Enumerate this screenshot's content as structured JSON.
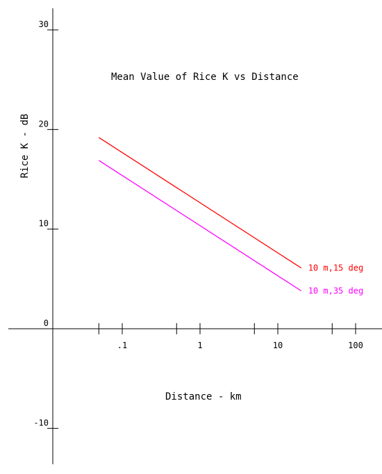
{
  "chart_data": {
    "type": "line",
    "title": "Mean Value of Rice K vs Distance",
    "xlabel": "Distance - km",
    "ylabel": "Rice K - dB",
    "x_scale": "log",
    "xlim": [
      0.025,
      200
    ],
    "ylim": [
      -12,
      31
    ],
    "grid": false,
    "y_ticks": [
      -10,
      0,
      10,
      20,
      30
    ],
    "y_tick_labels": [
      "-10",
      "0",
      "10",
      "20",
      "30"
    ],
    "x_major_ticks": [
      0.1,
      1,
      10,
      100
    ],
    "x_tick_labels": [
      ".1",
      "1",
      "10",
      "100"
    ],
    "x_minor_ticks": [
      0.05,
      0.5,
      5,
      50
    ],
    "series": [
      {
        "name": "10 m,15 deg",
        "color": "#ff0000",
        "x": [
          0.05,
          20
        ],
        "y": [
          19.2,
          6.1
        ]
      },
      {
        "name": "10 m,35 deg",
        "color": "#ff00ff",
        "x": [
          0.05,
          20
        ],
        "y": [
          16.9,
          3.8
        ]
      }
    ]
  }
}
